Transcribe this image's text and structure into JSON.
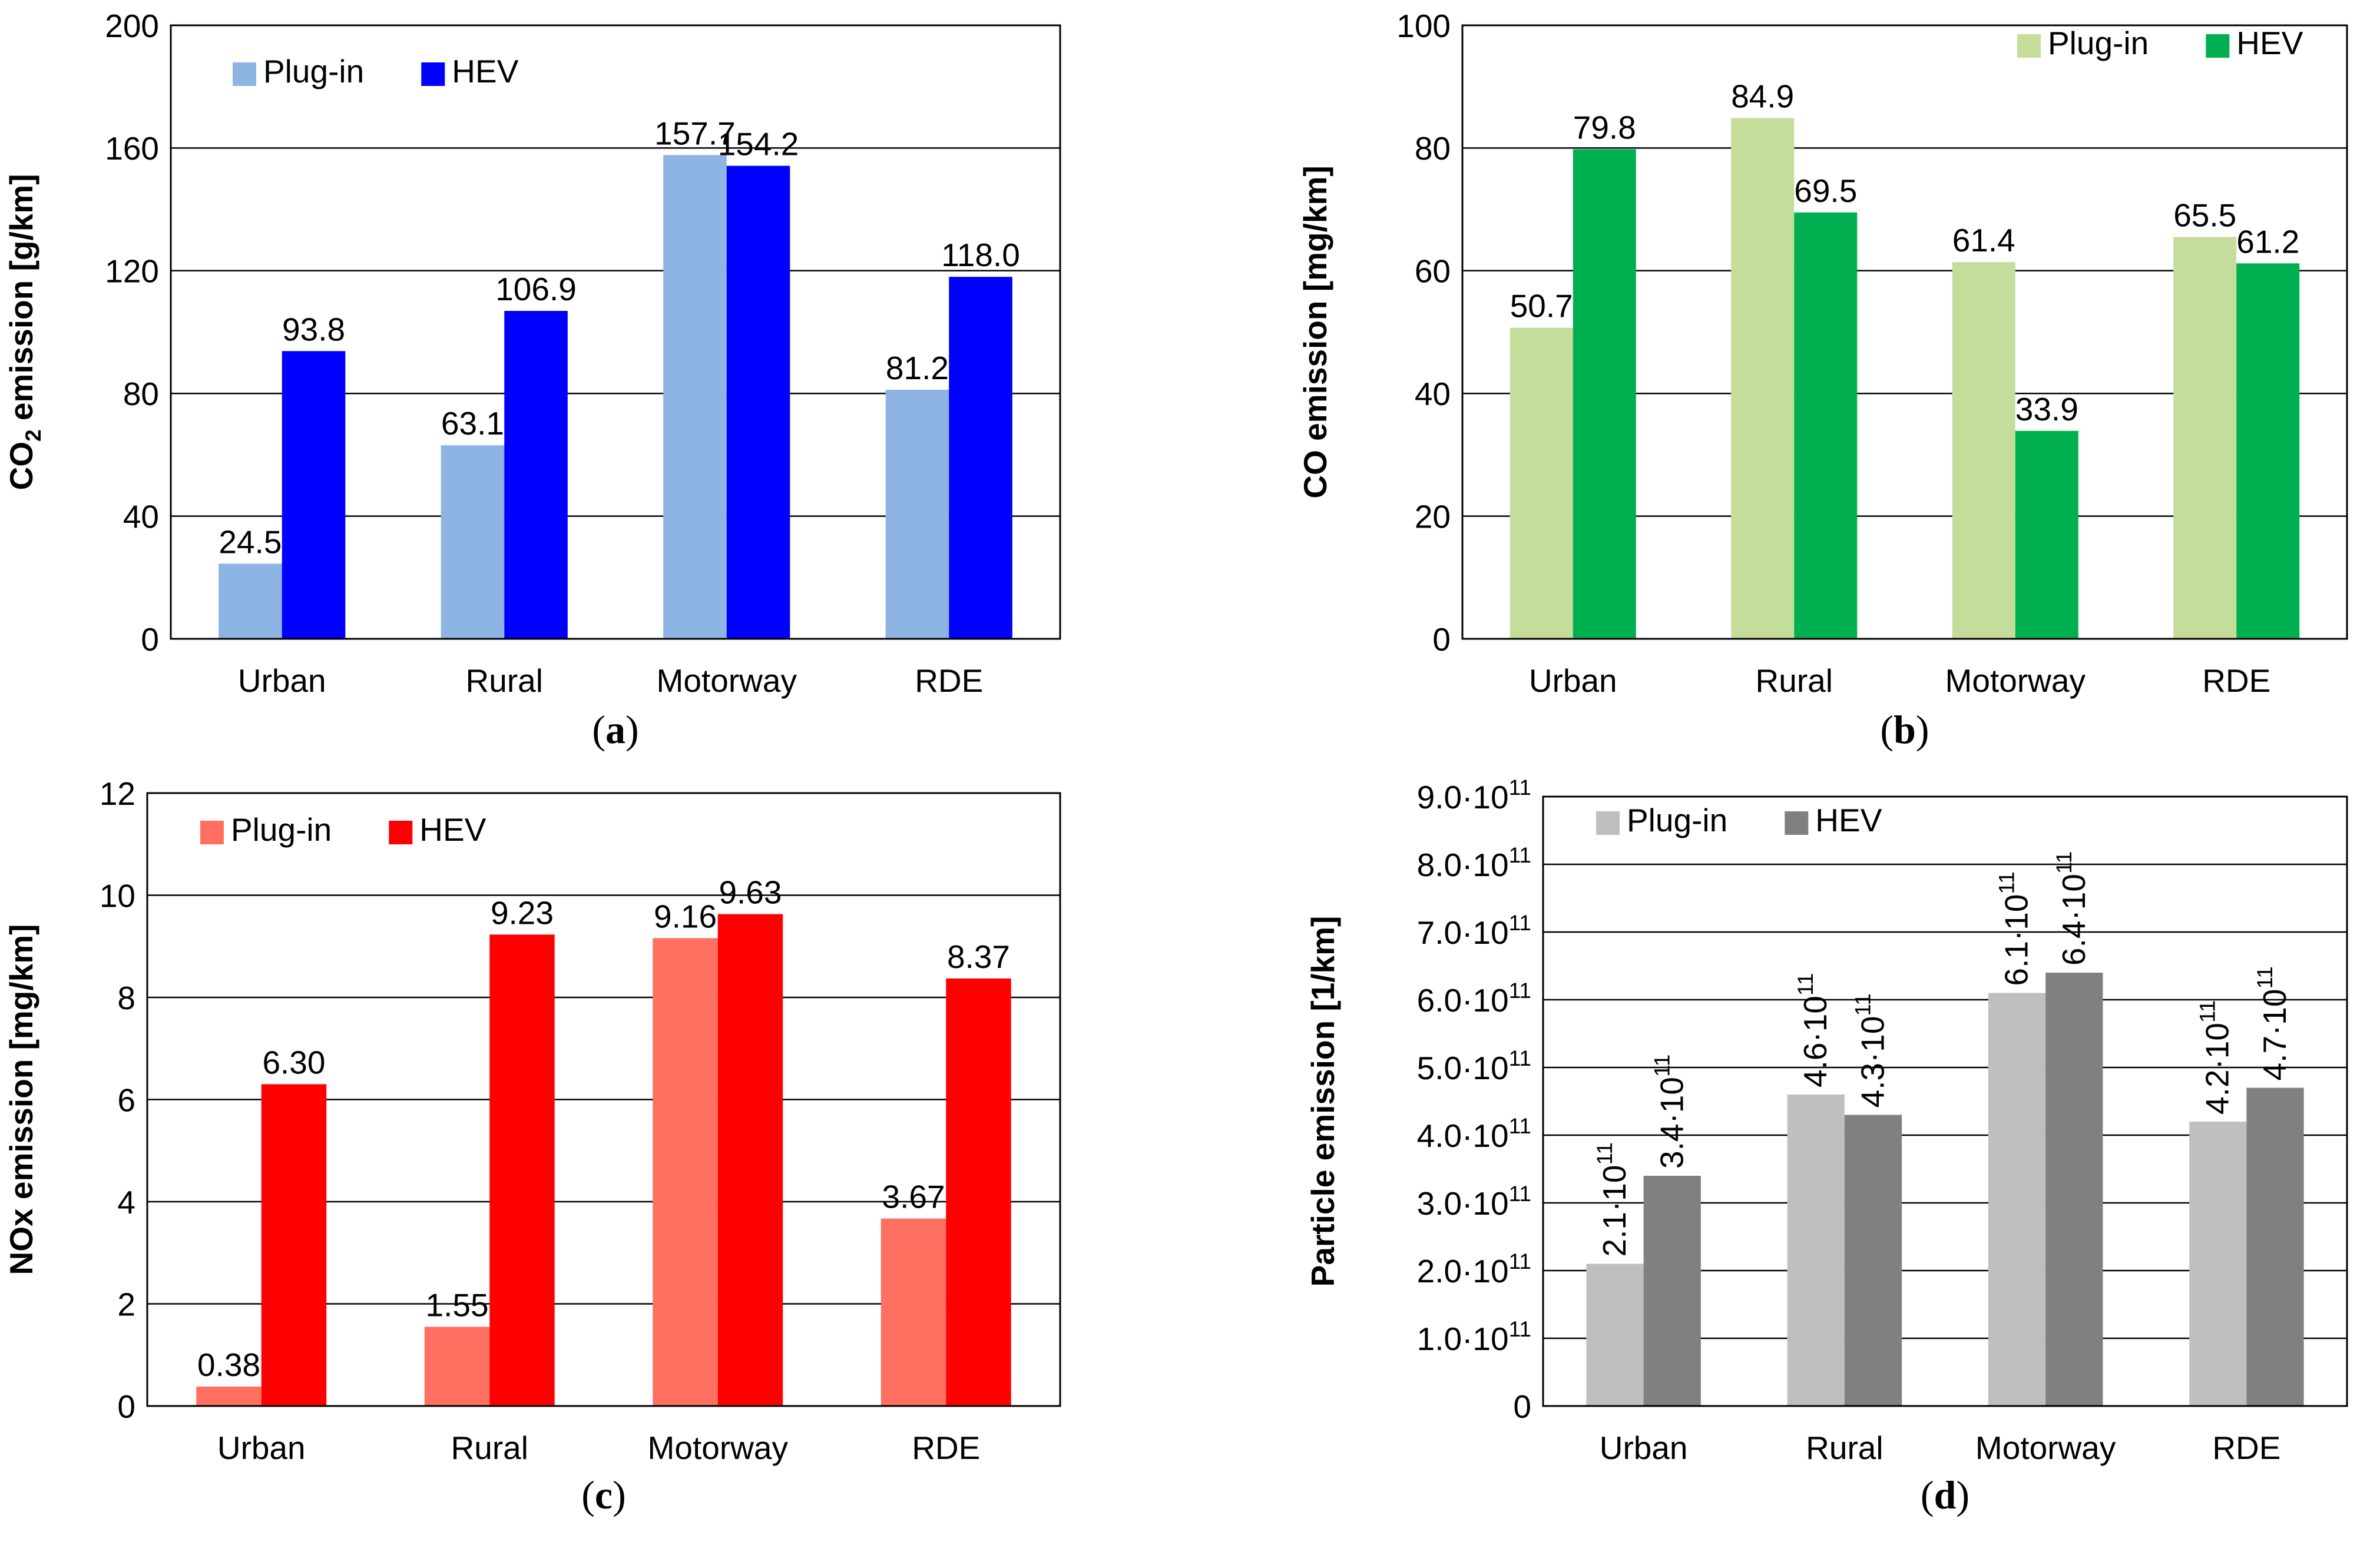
{
  "chart_data": [
    {
      "id": "a",
      "type": "bar",
      "panel_label": "a",
      "title": "",
      "xlabel": "",
      "ylabel": "CO₂ emission [g/km]",
      "categories": [
        "Urban",
        "Rural",
        "Motorway",
        "RDE"
      ],
      "ylim": [
        0,
        200
      ],
      "yticks": [
        0,
        40,
        80,
        120,
        160,
        200
      ],
      "ytick_labels": [
        "0",
        "40",
        "80",
        "120",
        "160",
        "200"
      ],
      "grid": true,
      "legend_position": "top-left",
      "series": [
        {
          "name": "Plug-in",
          "color": "#8db4e2",
          "values": [
            24.5,
            63.1,
            157.7,
            81.2
          ],
          "labels": [
            "24.5",
            "63.1",
            "157.7",
            "81.2"
          ]
        },
        {
          "name": "HEV",
          "color": "#0000ff",
          "values": [
            93.8,
            106.9,
            154.2,
            118.0
          ],
          "labels": [
            "93.8",
            "106.9",
            "154.2",
            "118.0"
          ]
        }
      ]
    },
    {
      "id": "b",
      "type": "bar",
      "panel_label": "b",
      "title": "",
      "xlabel": "",
      "ylabel": "CO emission [mg/km]",
      "categories": [
        "Urban",
        "Rural",
        "Motorway",
        "RDE"
      ],
      "ylim": [
        0,
        100
      ],
      "yticks": [
        0,
        20,
        40,
        60,
        80,
        100
      ],
      "ytick_labels": [
        "0",
        "20",
        "40",
        "60",
        "80",
        "100"
      ],
      "grid": true,
      "legend_position": "top-right",
      "series": [
        {
          "name": "Plug-in",
          "color": "#c4dd9a",
          "values": [
            50.7,
            84.9,
            61.4,
            65.5
          ],
          "labels": [
            "50.7",
            "84.9",
            "61.4",
            "65.5"
          ]
        },
        {
          "name": "HEV",
          "color": "#00b050",
          "values": [
            79.8,
            69.5,
            33.9,
            61.2
          ],
          "labels": [
            "79.8",
            "69.5",
            "33.9",
            "61.2"
          ]
        }
      ]
    },
    {
      "id": "c",
      "type": "bar",
      "panel_label": "c",
      "title": "",
      "xlabel": "",
      "ylabel": "NOx emission [mg/km]",
      "categories": [
        "Urban",
        "Rural",
        "Motorway",
        "RDE"
      ],
      "ylim": [
        0,
        12
      ],
      "yticks": [
        0,
        2,
        4,
        6,
        8,
        10,
        12
      ],
      "ytick_labels": [
        "0",
        "2",
        "4",
        "6",
        "8",
        "10",
        "12"
      ],
      "grid": true,
      "legend_position": "top-left",
      "series": [
        {
          "name": "Plug-in",
          "color": "#ff7060",
          "values": [
            0.38,
            1.55,
            9.16,
            3.67
          ],
          "labels": [
            "0.38",
            "1.55",
            "9.16",
            "3.67"
          ]
        },
        {
          "name": "HEV",
          "color": "#ff0000",
          "values": [
            6.3,
            9.23,
            9.63,
            8.37
          ],
          "labels": [
            "6.30",
            "9.23",
            "9.63",
            "8.37"
          ]
        }
      ]
    },
    {
      "id": "d",
      "type": "bar",
      "panel_label": "d",
      "title": "",
      "xlabel": "",
      "ylabel": "Particle emission [1/km]",
      "categories": [
        "Urban",
        "Rural",
        "Motorway",
        "RDE"
      ],
      "ylim": [
        0,
        900000000000.0
      ],
      "yticks": [
        0,
        100000000000.0,
        200000000000.0,
        300000000000.0,
        400000000000.0,
        500000000000.0,
        600000000000.0,
        700000000000.0,
        800000000000.0,
        900000000000.0
      ],
      "ytick_labels": [
        {
          "mantissa": "0",
          "exp": ""
        },
        {
          "mantissa": "1.0·10",
          "exp": "11"
        },
        {
          "mantissa": "2.0·10",
          "exp": "11"
        },
        {
          "mantissa": "3.0·10",
          "exp": "11"
        },
        {
          "mantissa": "4.0·10",
          "exp": "11"
        },
        {
          "mantissa": "5.0·10",
          "exp": "11"
        },
        {
          "mantissa": "6.0·10",
          "exp": "11"
        },
        {
          "mantissa": "7.0·10",
          "exp": "11"
        },
        {
          "mantissa": "8.0·10",
          "exp": "11"
        },
        {
          "mantissa": "9.0·10",
          "exp": "11"
        }
      ],
      "grid": true,
      "legend_position": "top-left",
      "rotated_labels": true,
      "series": [
        {
          "name": "Plug-in",
          "color": "#bfbfbf",
          "values": [
            210000000000.0,
            460000000000.0,
            610000000000.0,
            420000000000.0
          ],
          "labels": [
            {
              "mantissa": "2.1·10",
              "exp": "11"
            },
            {
              "mantissa": "4.6·10",
              "exp": "11"
            },
            {
              "mantissa": "6.1·10",
              "exp": "11"
            },
            {
              "mantissa": "4.2·10",
              "exp": "11"
            }
          ]
        },
        {
          "name": "HEV",
          "color": "#808080",
          "values": [
            340000000000.0,
            430000000000.0,
            640000000000.0,
            470000000000.0
          ],
          "labels": [
            {
              "mantissa": "3.4·10",
              "exp": "11"
            },
            {
              "mantissa": "4.3·10",
              "exp": "11"
            },
            {
              "mantissa": "6.4·10",
              "exp": "11"
            },
            {
              "mantissa": "4.7·10",
              "exp": "11"
            }
          ]
        }
      ]
    }
  ]
}
